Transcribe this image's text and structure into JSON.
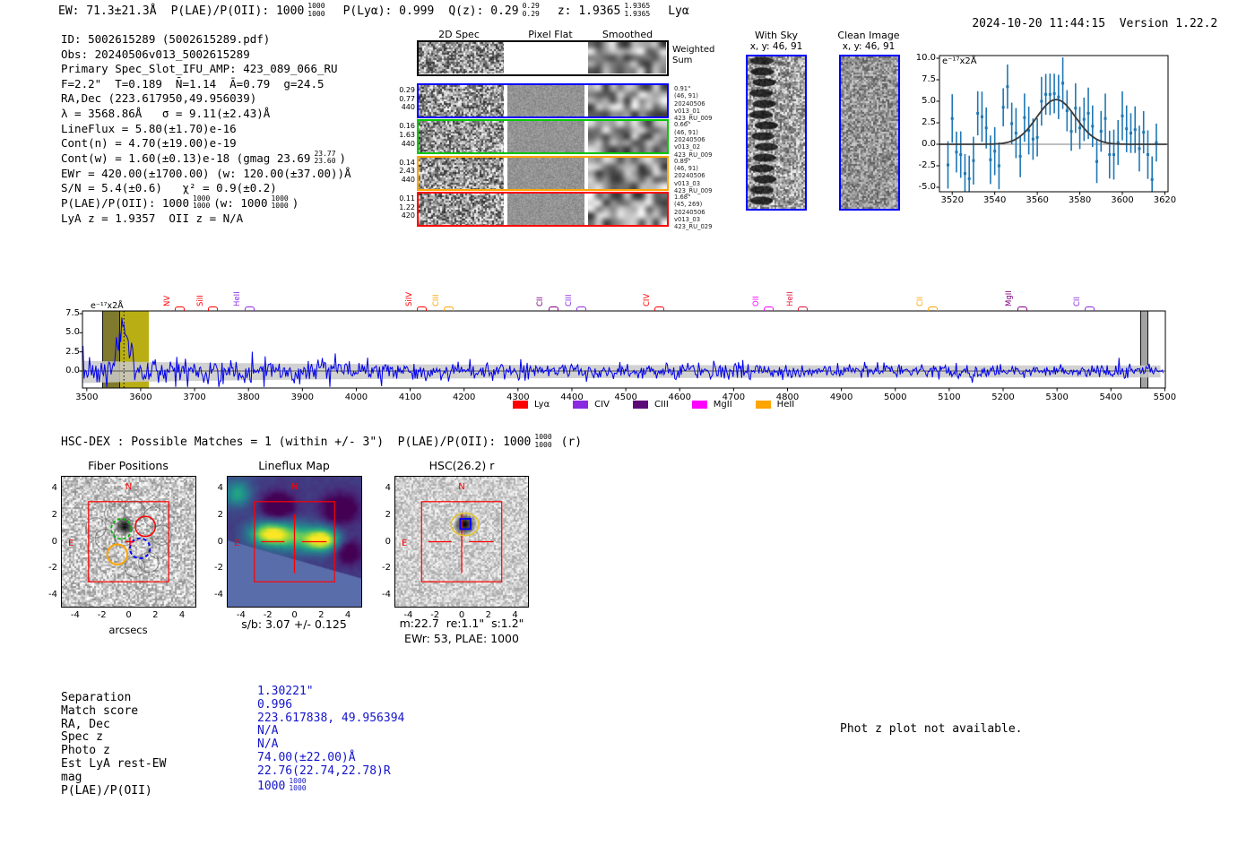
{
  "meta": {
    "datetime": "2024-10-20 11:44:15",
    "version": "Version 1.22.2"
  },
  "header": {
    "ew": "EW: 71.3±21.3Å",
    "plae_label": "P(LAE)/P(OII): 1000",
    "plae_top": "1000",
    "plae_bot": "1000",
    "plya": "P(Lyα): 0.999",
    "qz": "Q(z): 0.29",
    "qz_top": "0.29",
    "qz_bot": "0.29",
    "z": "z: 1.9365",
    "z_top": "1.9365",
    "z_bot": "1.9365",
    "line_id": "Lyα"
  },
  "info": {
    "lines": [
      "ID: 5002615289 (5002615289.pdf)",
      "Obs: 20240506v013_5002615289",
      "Primary Spec_Slot_IFU_AMP: 423_089_066_RU",
      "F=2.2\"  T=0.189  N̄=1.14  Ā=0.79  g=24.5",
      "RA,Dec (223.617950,49.956039)",
      "λ = 3568.86Å   σ = 9.11(±2.43)Å",
      "LineFlux = 5.80(±1.70)e-16",
      "Cont(n) = 4.70(±19.00)e-19"
    ],
    "contw_pre": "Cont(w) = 1.60(±0.13)e-18 (gmag 23.69",
    "contw_top": "23.77",
    "contw_bot": "23.60",
    "contw_post": ")",
    "ewr": "EWr = 420.00(±1700.00) (w: 120.00(±37.00))Å",
    "sn": "S/N = 5.4(±0.6)   χ² = 0.9(±0.2)",
    "plae_pre": "P(LAE)/P(OII): 1000",
    "plae_top": "1000",
    "plae_bot": "1000",
    "plae_mid": "(w: 1000",
    "plae_top2": "1000",
    "plae_bot2": "1000",
    "plae_post": ")",
    "lyaz": "LyA z = 1.9357  OII z = N/A"
  },
  "spec2d": {
    "headers": [
      "2D Spec",
      "Pixel Flat",
      "Smoothed"
    ],
    "weighted_sum": [
      "Weighted",
      "Sum"
    ],
    "rows": [
      {
        "color": "#0000ff",
        "left": [
          "0.29",
          "0.77",
          "440"
        ],
        "ann": [
          "0.91\"",
          "(46, 91)",
          "20240506",
          "v013_01",
          "423_RU_009"
        ]
      },
      {
        "color": "#00c800",
        "left": [
          "0.16",
          "1.63",
          "440"
        ],
        "ann": [
          "0.66\"",
          "(46, 91)",
          "20240506",
          "v013_02",
          "423_RU_009"
        ]
      },
      {
        "color": "#ffa500",
        "left": [
          "0.14",
          "2.43",
          "440"
        ],
        "ann": [
          "0.89\"",
          "(46, 91)",
          "20240506",
          "v013_03",
          "423_RU_009"
        ]
      },
      {
        "color": "#ff0000",
        "left": [
          "0.11",
          "1.22",
          "420"
        ],
        "ann": [
          "1.68\"",
          "(45, 269)",
          "20240506",
          "v013_03",
          "423_RU_029"
        ]
      }
    ]
  },
  "sky_panels": [
    {
      "title": "With Sky",
      "subtitle": "x, y: 46, 91"
    },
    {
      "title": "Clean Image",
      "subtitle": "x, y: 46, 91"
    }
  ],
  "chart_data": [
    {
      "type": "scatter",
      "title": "line fit zoom",
      "ylabel_annotation": "e⁻¹⁷x2Å",
      "x": [
        3518,
        3520,
        3522,
        3524,
        3526,
        3528,
        3530,
        3532,
        3534,
        3536,
        3538,
        3540,
        3542,
        3544,
        3546,
        3548,
        3550,
        3552,
        3554,
        3556,
        3558,
        3560,
        3562,
        3564,
        3566,
        3568,
        3570,
        3572,
        3574,
        3576,
        3578,
        3580,
        3582,
        3584,
        3586,
        3588,
        3590,
        3592,
        3594,
        3596,
        3598,
        3600,
        3602,
        3604,
        3606,
        3608,
        3610,
        3612,
        3614,
        3616
      ],
      "y": [
        -2.4,
        3.0,
        -0.9,
        -1.2,
        -3.4,
        -4.0,
        -1.9,
        3.6,
        3.2,
        1.9,
        -1.8,
        -0.8,
        -2.5,
        4.3,
        6.7,
        2.4,
        1.3,
        -1.4,
        3.1,
        1.6,
        0.6,
        0.8,
        5.0,
        5.8,
        5.8,
        5.9,
        5.5,
        7.1,
        3.9,
        1.5,
        4.2,
        1.9,
        2.9,
        3.6,
        2.1,
        -2.0,
        1.5,
        3.0,
        -1.2,
        -1.2,
        0.2,
        3.3,
        1.8,
        1.3,
        1.7,
        -0.5,
        1.4,
        -1.2,
        -4.1,
        0.2
      ],
      "yerr_approx": 2.6,
      "fit": {
        "type": "gaussian",
        "mu": 3568.9,
        "sigma": 9.11,
        "amplitude": 5.2
      },
      "xticks": [
        3520,
        3540,
        3560,
        3580,
        3600,
        3620
      ],
      "yticks": [
        10.0,
        7.5,
        5.0,
        2.5,
        0.0,
        -2.5,
        -5.0
      ],
      "xlim": [
        3514,
        3621.5
      ],
      "ylim": [
        -5.5,
        10.3
      ],
      "point_color": "#1f77b4",
      "fit_color": "#3a3a3a",
      "grid": false
    },
    {
      "type": "line",
      "title": "full spectrum",
      "ylabel_annotation": "e⁻¹⁷x2Å",
      "xlim": [
        3492,
        5501
      ],
      "ylim": [
        -2.2,
        7.85
      ],
      "xticks": [
        3500,
        3600,
        3700,
        3800,
        3900,
        4000,
        4100,
        4200,
        4300,
        4400,
        4500,
        4600,
        4700,
        4800,
        4900,
        5000,
        5100,
        5200,
        5300,
        5400,
        5500
      ],
      "yticks": [
        0.0,
        2.5,
        5.0,
        7.5
      ],
      "line_color": "#0000ee",
      "error_band_color": "#c9c9c9",
      "emission_peak": {
        "wavelength": 3568.9,
        "flux": 7.3
      },
      "note": "noisy flux spectrum; amplitude of noise decays from ~±1.5 at 3500Å to ~±0.6 at 5500Å; rendered as seeded pseudo-random approximation",
      "marker_line": {
        "x": 3568.9,
        "style": "dotted",
        "color": "#000000"
      },
      "highlight_bands": [
        {
          "x0": 3530,
          "x1": 3615,
          "color": "#b3a800",
          "style": "solid"
        },
        {
          "x0": 3528,
          "x1": 3558,
          "color": "#555555",
          "style": "hatched"
        },
        {
          "x0": 5455,
          "x1": 5466,
          "color": "#555555",
          "style": "hatched"
        }
      ],
      "line_markers": [
        {
          "label": "NV",
          "wavelength": 3671,
          "color": "#ff0000"
        },
        {
          "label": "SiII",
          "wavelength": 3733,
          "color": "#ff0000"
        },
        {
          "label": "HeII",
          "wavelength": 3801,
          "color": "#8a2be2"
        },
        {
          "label": "SiIV",
          "wavelength": 4120,
          "color": "#ff0000"
        },
        {
          "label": "CIII",
          "wavelength": 4170,
          "color": "#ffa500"
        },
        {
          "label": "CII",
          "wavelength": 4364,
          "color": "#800080"
        },
        {
          "label": "CIII",
          "wavelength": 4416,
          "color": "#8a2be2"
        },
        {
          "label": "CIV",
          "wavelength": 4561,
          "color": "#ff0000"
        },
        {
          "label": "OII",
          "wavelength": 4764,
          "color": "#ff00ff"
        },
        {
          "label": "HeII",
          "wavelength": 4827,
          "color": "#dc143c"
        },
        {
          "label": "CII",
          "wavelength": 5068,
          "color": "#ffa500"
        },
        {
          "label": "MgII",
          "wavelength": 5234,
          "color": "#800080"
        },
        {
          "label": "CII",
          "wavelength": 5359,
          "color": "#8a2be2"
        }
      ],
      "legend": [
        {
          "label": "Lyα",
          "color": "#ff0000"
        },
        {
          "label": "CIV",
          "color": "#8a2be2"
        },
        {
          "label": "CIII",
          "color": "#5c0a78"
        },
        {
          "label": "MgII",
          "color": "#ff00ff"
        },
        {
          "label": "HeII",
          "color": "#ffa500"
        }
      ],
      "legend_position": "bottom center"
    }
  ],
  "hsc": {
    "line_pre": "HSC-DEX : Possible Matches = 1 (within +/- 3\")  P(LAE)/P(OII): 1000",
    "frac_top": "1000",
    "frac_bot": "1000",
    "line_post": "(r)"
  },
  "cutouts": {
    "tick_labels": [
      "-4",
      "-2",
      "0",
      "2",
      "4"
    ],
    "compass_n": "N",
    "compass_e": "E",
    "panels": [
      {
        "title": "Fiber Positions",
        "xlabel": "arcsecs"
      },
      {
        "title": "Lineflux Map",
        "caption": "s/b: 3.07 +/- 0.125"
      },
      {
        "title": "HSC(26.2) r",
        "caption": "m:22.7  re:1.1\"  s:1.2\"",
        "caption2": "EWr: 53, PLAE: 1000"
      }
    ]
  },
  "match_table": {
    "rows": [
      {
        "label": "Separation",
        "value": "1.30221\""
      },
      {
        "label": "Match score",
        "value": "0.996"
      },
      {
        "label": "RA, Dec",
        "value": "223.617838, 49.956394"
      },
      {
        "label": "Spec z",
        "value": "N/A"
      },
      {
        "label": "Photo z",
        "value": "N/A"
      },
      {
        "label": "Est LyA rest-EW",
        "value": "74.00(±22.00)Å"
      },
      {
        "label": "mag",
        "value": "22.76(22.74,22.78)R"
      },
      {
        "label": "P(LAE)/P(OII)",
        "value": "1000",
        "frac_top": "1000",
        "frac_bot": "1000"
      }
    ]
  },
  "notice": "Phot z plot not available.",
  "colors": {
    "accent_blue": "#0000ff",
    "value_blue": "#1414cc",
    "band_olive": "#b3a800",
    "error_band": "#c9c9c9",
    "point_blue": "#1f77b4",
    "marker_red": "#ff0000"
  }
}
